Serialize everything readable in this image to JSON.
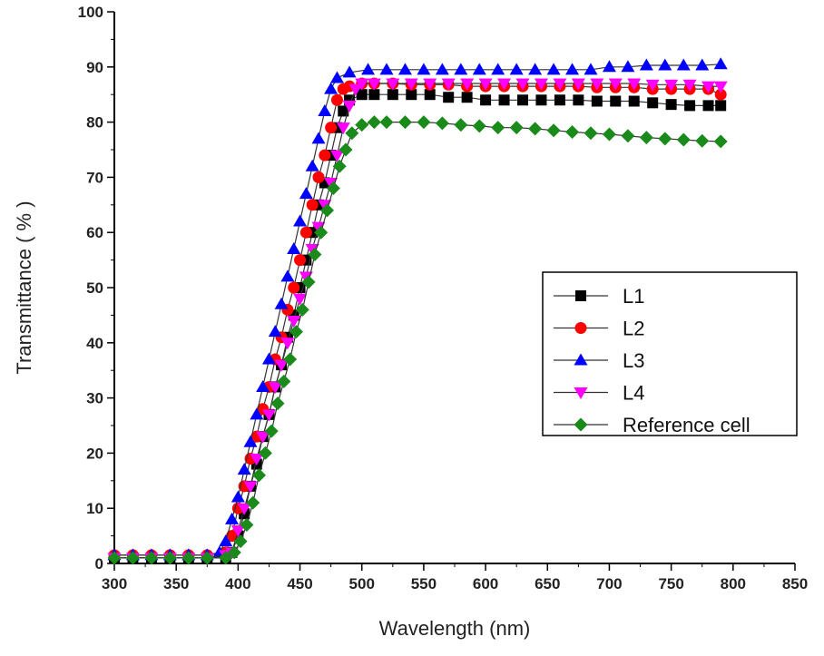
{
  "chart_data": {
    "type": "line",
    "title": "",
    "xlabel": "Wavelength (nm)",
    "ylabel": "Transmittance ( % )",
    "xlim": [
      300,
      850
    ],
    "ylim": [
      0,
      100
    ],
    "xticks": [
      300,
      350,
      400,
      450,
      500,
      550,
      600,
      650,
      700,
      750,
      800,
      850
    ],
    "yticks": [
      0,
      10,
      20,
      30,
      40,
      50,
      60,
      70,
      80,
      90,
      100
    ],
    "grid": false,
    "legend_position": "center-right",
    "series": [
      {
        "name": "L1",
        "color": "#000000",
        "marker": "square",
        "x": [
          300,
          315,
          330,
          345,
          360,
          375,
          390,
          395,
          400,
          405,
          410,
          415,
          420,
          425,
          430,
          435,
          440,
          445,
          450,
          455,
          460,
          465,
          470,
          475,
          480,
          485,
          490,
          500,
          510,
          525,
          540,
          555,
          570,
          585,
          600,
          615,
          630,
          645,
          660,
          675,
          690,
          705,
          720,
          735,
          750,
          765,
          780,
          790
        ],
        "y": [
          1,
          1,
          1,
          1,
          1,
          1,
          1,
          2,
          5,
          9,
          14,
          18,
          23,
          27,
          32,
          36,
          41,
          45,
          50,
          55,
          60,
          65,
          69,
          74,
          79,
          82,
          84,
          85,
          85,
          85,
          85,
          85,
          84.5,
          84.5,
          84,
          84,
          84,
          84,
          84,
          84,
          83.8,
          83.8,
          83.8,
          83.5,
          83.2,
          83,
          83,
          83
        ]
      },
      {
        "name": "L2",
        "color": "#ff0000",
        "marker": "circle",
        "x": [
          300,
          315,
          330,
          345,
          360,
          375,
          390,
          395,
          400,
          405,
          410,
          415,
          420,
          425,
          430,
          435,
          440,
          445,
          450,
          455,
          460,
          465,
          470,
          475,
          480,
          485,
          490,
          500,
          510,
          525,
          540,
          555,
          570,
          585,
          600,
          615,
          630,
          645,
          660,
          675,
          690,
          705,
          720,
          735,
          750,
          765,
          780,
          790
        ],
        "y": [
          1.5,
          1.5,
          1.5,
          1.5,
          1.5,
          1.5,
          2,
          5,
          10,
          14,
          19,
          23,
          28,
          32,
          37,
          41,
          46,
          50,
          55,
          60,
          65,
          70,
          74,
          79,
          84,
          86,
          86.5,
          87,
          87,
          87,
          86.8,
          86.8,
          86.8,
          86.5,
          86.5,
          86.5,
          86.5,
          86.5,
          86.5,
          86.5,
          86.3,
          86.3,
          86.3,
          86,
          86,
          86,
          86,
          85
        ]
      },
      {
        "name": "L3",
        "color": "#0000ff",
        "marker": "triangle-up",
        "x": [
          300,
          315,
          330,
          345,
          360,
          375,
          385,
          390,
          395,
          400,
          405,
          410,
          415,
          420,
          425,
          430,
          435,
          440,
          445,
          450,
          455,
          460,
          465,
          470,
          475,
          480,
          490,
          505,
          520,
          535,
          550,
          565,
          580,
          595,
          610,
          625,
          640,
          655,
          670,
          685,
          700,
          715,
          730,
          745,
          760,
          775,
          790
        ],
        "y": [
          1.5,
          1.5,
          1.5,
          1.5,
          1.5,
          1.5,
          2,
          4,
          8,
          12,
          17,
          22,
          27,
          32,
          37,
          42,
          47,
          52,
          57,
          62,
          67,
          72,
          77,
          82,
          86,
          88,
          89,
          89.5,
          89.5,
          89.5,
          89.5,
          89.5,
          89.5,
          89.5,
          89.5,
          89.5,
          89.5,
          89.5,
          89.5,
          89.5,
          90,
          90,
          90.3,
          90.3,
          90.3,
          90.3,
          90.5
        ]
      },
      {
        "name": "L4",
        "color": "#ff00ff",
        "marker": "triangle-down",
        "x": [
          300,
          315,
          330,
          345,
          360,
          375,
          390,
          395,
          400,
          405,
          410,
          415,
          420,
          425,
          430,
          435,
          440,
          445,
          450,
          455,
          460,
          465,
          470,
          475,
          480,
          485,
          490,
          495,
          500,
          510,
          525,
          540,
          555,
          570,
          585,
          600,
          615,
          630,
          645,
          660,
          675,
          690,
          705,
          720,
          735,
          750,
          765,
          780,
          790
        ],
        "y": [
          1,
          1,
          1,
          1,
          1,
          1,
          1.5,
          2,
          6,
          10,
          14,
          19,
          23,
          27,
          32,
          36,
          40,
          44,
          48,
          52,
          57,
          61,
          65,
          69,
          74,
          79,
          83,
          86,
          87,
          87,
          87,
          87,
          87,
          87,
          87,
          87,
          87,
          87,
          87,
          87,
          87,
          87,
          87,
          87,
          86.8,
          86.8,
          86.8,
          86.5,
          86.5
        ]
      },
      {
        "name": "Reference cell",
        "color": "#1a8a1a",
        "marker": "diamond",
        "x": [
          300,
          315,
          330,
          345,
          360,
          375,
          390,
          397,
          402,
          407,
          412,
          417,
          422,
          427,
          432,
          437,
          442,
          447,
          452,
          457,
          462,
          467,
          472,
          477,
          482,
          487,
          492,
          500,
          510,
          520,
          535,
          550,
          565,
          580,
          595,
          610,
          625,
          640,
          655,
          670,
          685,
          700,
          715,
          730,
          745,
          760,
          775,
          790
        ],
        "y": [
          1,
          1,
          1,
          1,
          1,
          1,
          1,
          2,
          4,
          7,
          11,
          16,
          20,
          24,
          29,
          33,
          37,
          42,
          46,
          51,
          56,
          60,
          64,
          68,
          72,
          75,
          78,
          79.5,
          80,
          80,
          80,
          80,
          79.8,
          79.5,
          79.3,
          79,
          79,
          78.8,
          78.5,
          78.2,
          78,
          77.8,
          77.5,
          77.2,
          77,
          76.8,
          76.6,
          76.5
        ]
      }
    ]
  }
}
